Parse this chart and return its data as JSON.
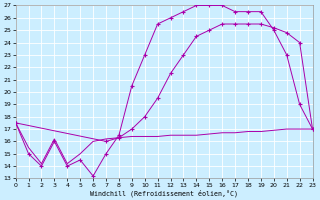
{
  "xlabel": "Windchill (Refroidissement éolien,°C)",
  "xlim": [
    0,
    23
  ],
  "ylim": [
    13,
    27
  ],
  "xticks": [
    0,
    1,
    2,
    3,
    4,
    5,
    6,
    7,
    8,
    9,
    10,
    11,
    12,
    13,
    14,
    15,
    16,
    17,
    18,
    19,
    20,
    21,
    22,
    23
  ],
  "yticks": [
    13,
    14,
    15,
    16,
    17,
    18,
    19,
    20,
    21,
    22,
    23,
    24,
    25,
    26,
    27
  ],
  "background_color": "#cceeff",
  "line_color": "#aa00aa",
  "grid_color": "#ffffff",
  "line1_x": [
    0,
    1,
    2,
    3,
    4,
    5,
    6,
    7,
    8,
    9,
    10,
    11,
    12,
    13,
    14,
    15,
    16,
    17,
    18,
    19,
    20,
    21,
    22,
    23
  ],
  "line1_y": [
    17.5,
    15.0,
    14.0,
    16.0,
    14.0,
    14.5,
    13.2,
    15.0,
    16.5,
    20.5,
    23.0,
    25.5,
    26.0,
    26.5,
    27.0,
    27.0,
    27.0,
    26.5,
    26.5,
    26.5,
    25.0,
    23.0,
    19.0,
    17.0
  ],
  "line2_x": [
    0,
    1,
    2,
    3,
    4,
    5,
    6,
    7,
    8,
    9,
    10,
    11,
    12,
    13,
    14,
    15,
    16,
    17,
    18,
    19,
    20,
    21,
    22,
    23
  ],
  "line2_y": [
    17.5,
    15.5,
    14.2,
    16.2,
    14.2,
    15.0,
    16.0,
    16.2,
    16.3,
    16.4,
    16.4,
    16.4,
    16.5,
    16.5,
    16.5,
    16.6,
    16.7,
    16.7,
    16.8,
    16.8,
    16.9,
    17.0,
    17.0,
    17.0
  ],
  "line3_x": [
    0,
    7,
    8,
    9,
    10,
    11,
    12,
    13,
    14,
    15,
    16,
    17,
    18,
    19,
    20,
    21,
    22,
    23
  ],
  "line3_y": [
    17.5,
    16.0,
    16.3,
    17.0,
    18.0,
    19.5,
    21.5,
    23.0,
    24.5,
    25.0,
    25.5,
    25.5,
    25.5,
    25.5,
    25.2,
    24.8,
    24.0,
    17.0
  ]
}
